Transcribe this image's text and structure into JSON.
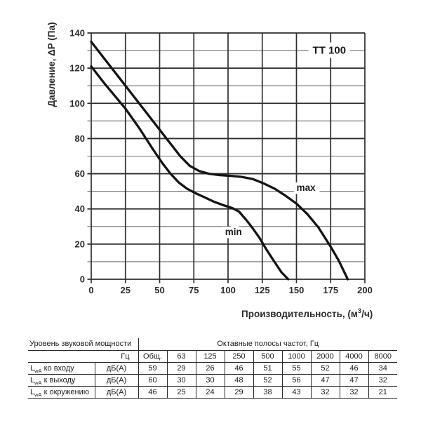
{
  "chart": {
    "xlabel_parts": [
      "Производительность, (м",
      "3",
      "/ч)"
    ]
  },
  "chart_data": {
    "type": "line",
    "title": "TT 100",
    "xlabel": "Производительность, (м³/ч)",
    "ylabel": "Давление, ΔP (Па)",
    "xlim": [
      0,
      200
    ],
    "ylim": [
      0,
      140
    ],
    "x_ticks": [
      0,
      25,
      50,
      75,
      100,
      125,
      150,
      175,
      200
    ],
    "y_ticks": [
      0,
      20,
      40,
      60,
      80,
      100,
      120,
      140
    ],
    "y_minor_step": 10,
    "grid": true,
    "legend_position": "inline-labels",
    "series": [
      {
        "name": "max",
        "points": [
          [
            0,
            135
          ],
          [
            10,
            125
          ],
          [
            25,
            110
          ],
          [
            40,
            95
          ],
          [
            50,
            85
          ],
          [
            58,
            77
          ],
          [
            65,
            70
          ],
          [
            72,
            64.5
          ],
          [
            79,
            61.5
          ],
          [
            86,
            60
          ],
          [
            94,
            59.2
          ],
          [
            102,
            58.8
          ],
          [
            110,
            58.2
          ],
          [
            118,
            57
          ],
          [
            126,
            54.5
          ],
          [
            134,
            51.5
          ],
          [
            142,
            47.5
          ],
          [
            150,
            43
          ],
          [
            158,
            37
          ],
          [
            166,
            29.5
          ],
          [
            175,
            18.5
          ],
          [
            181,
            10.5
          ],
          [
            187.5,
            0
          ]
        ]
      },
      {
        "name": "min",
        "points": [
          [
            0,
            121
          ],
          [
            10,
            111
          ],
          [
            25,
            97
          ],
          [
            35,
            86
          ],
          [
            45,
            74
          ],
          [
            52,
            66
          ],
          [
            58,
            60
          ],
          [
            64,
            55
          ],
          [
            70,
            51.5
          ],
          [
            76,
            49
          ],
          [
            83,
            46.5
          ],
          [
            90,
            44
          ],
          [
            97,
            42
          ],
          [
            103,
            40.5
          ],
          [
            108,
            38.5
          ],
          [
            113,
            34
          ],
          [
            118,
            29
          ],
          [
            123,
            23.5
          ],
          [
            128,
            17
          ],
          [
            133,
            11
          ],
          [
            139,
            4
          ],
          [
            144,
            0
          ]
        ]
      }
    ],
    "annotations": [
      {
        "text": "TT 100",
        "x": 174,
        "y": 130,
        "role": "model-label"
      },
      {
        "text": "max",
        "x": 157,
        "y": 52,
        "role": "max-curve-label"
      },
      {
        "text": "min",
        "x": 104,
        "y": 27,
        "role": "min-curve-label"
      }
    ]
  },
  "table": {
    "header_left": "Уровень звуковой мощности",
    "header_right": "Октавные полосы частот, Гц",
    "freq_label": "Гц",
    "columns": [
      "Общ.",
      "63",
      "125",
      "250",
      "500",
      "1000",
      "2000",
      "4000",
      "8000"
    ],
    "rows": [
      {
        "label_main": "L",
        "label_sub": "wA",
        "label_rest": " ко входу",
        "unit": "дБ(А)",
        "values": [
          59,
          29,
          26,
          46,
          51,
          55,
          52,
          46,
          34
        ]
      },
      {
        "label_main": "L",
        "label_sub": "wA",
        "label_rest": " к выходу",
        "unit": "дБ(А)",
        "values": [
          60,
          30,
          30,
          48,
          52,
          56,
          47,
          47,
          32
        ]
      },
      {
        "label_main": "L",
        "label_sub": "wA",
        "label_rest": " к окружению",
        "unit": "дБ(А)",
        "values": [
          46,
          25,
          24,
          29,
          38,
          43,
          32,
          32,
          21
        ]
      }
    ]
  },
  "colors": {
    "curve": "#141414",
    "grid_major": "#2e2e2e",
    "grid_minor": "#6e6e6e",
    "text": "#2b2b2b",
    "background": "#ffffff"
  }
}
